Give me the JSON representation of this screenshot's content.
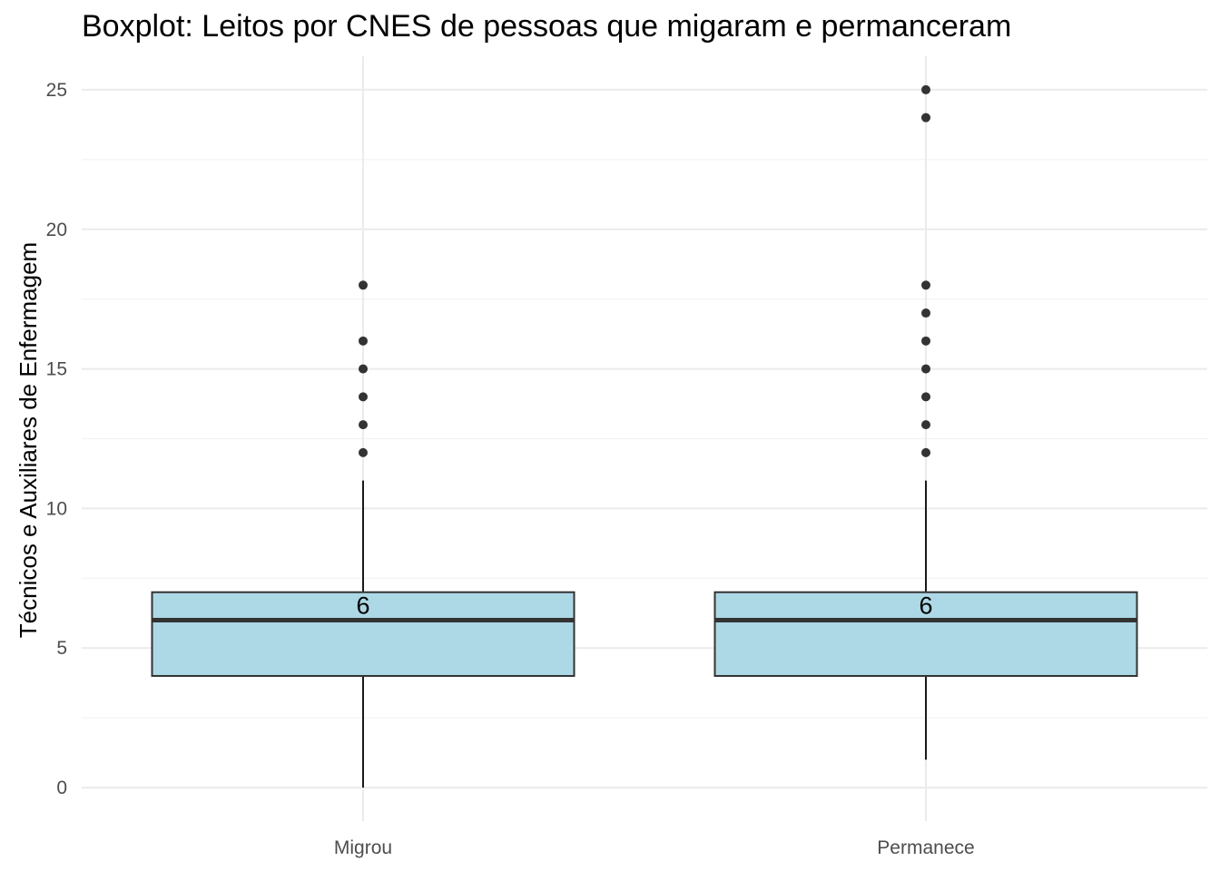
{
  "chart_data": {
    "type": "boxplot",
    "title": "Boxplot: Leitos por CNES de pessoas que migaram e permanceram",
    "xlabel": "",
    "ylabel": "Técnicos e Auxiliares de Enfermagem",
    "ylim": [
      -1.2,
      26.2
    ],
    "y_ticks": [
      0,
      5,
      10,
      15,
      20,
      25
    ],
    "y_tick_labels": [
      "0",
      "5",
      "10",
      "15",
      "20",
      "25"
    ],
    "categories": [
      "Migrou",
      "Permanece"
    ],
    "grid": true,
    "box_color": "#add8e6",
    "line_color": "#333333",
    "series": [
      {
        "category": "Migrou",
        "whisker_low": 0,
        "q1": 4,
        "median": 6,
        "q3": 7,
        "whisker_high": 11,
        "outliers": [
          12,
          13,
          14,
          15,
          16,
          18
        ],
        "median_label": "6"
      },
      {
        "category": "Permanece",
        "whisker_low": 1,
        "q1": 4,
        "median": 6,
        "q3": 7,
        "whisker_high": 11,
        "outliers": [
          12,
          13,
          14,
          15,
          16,
          17,
          18,
          24,
          25
        ],
        "median_label": "6"
      }
    ]
  }
}
